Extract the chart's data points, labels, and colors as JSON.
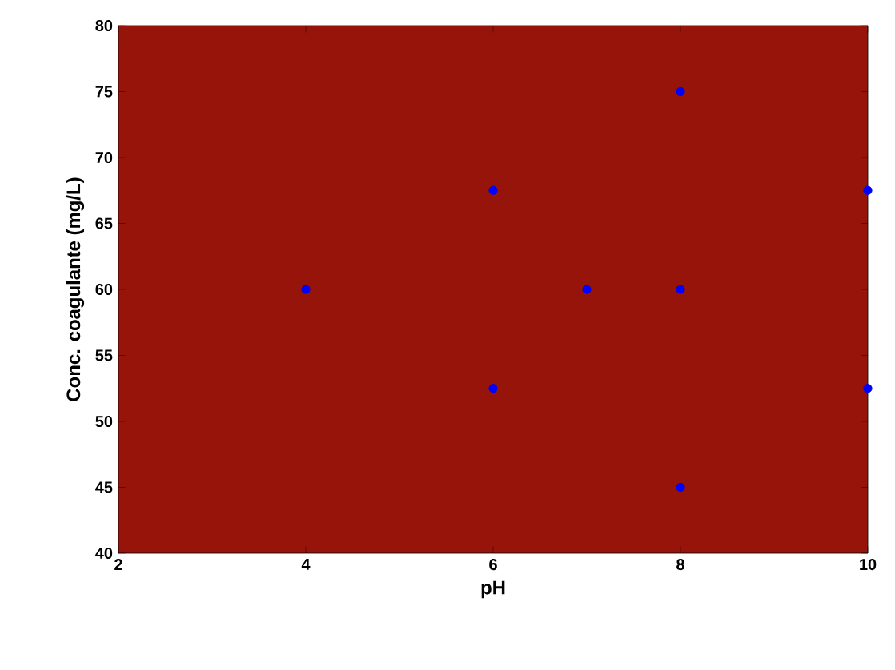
{
  "chart_data": {
    "type": "scatter",
    "xlabel": "pH",
    "ylabel": "Conc. coagulante (mg/L)",
    "x": [
      4,
      6,
      6,
      7,
      8,
      8,
      8,
      10,
      10
    ],
    "series": [
      {
        "color": "#0000ff",
        "values": [
          60,
          67.5,
          52.5,
          60,
          75,
          60,
          45,
          67.5,
          52.5
        ]
      }
    ],
    "xlim": [
      2,
      10
    ],
    "ylim": [
      40,
      80
    ],
    "xticks": [
      2,
      4,
      6,
      8,
      10
    ],
    "yticks": [
      40,
      45,
      50,
      55,
      60,
      65,
      70,
      75,
      80
    ],
    "marker": "circle"
  }
}
